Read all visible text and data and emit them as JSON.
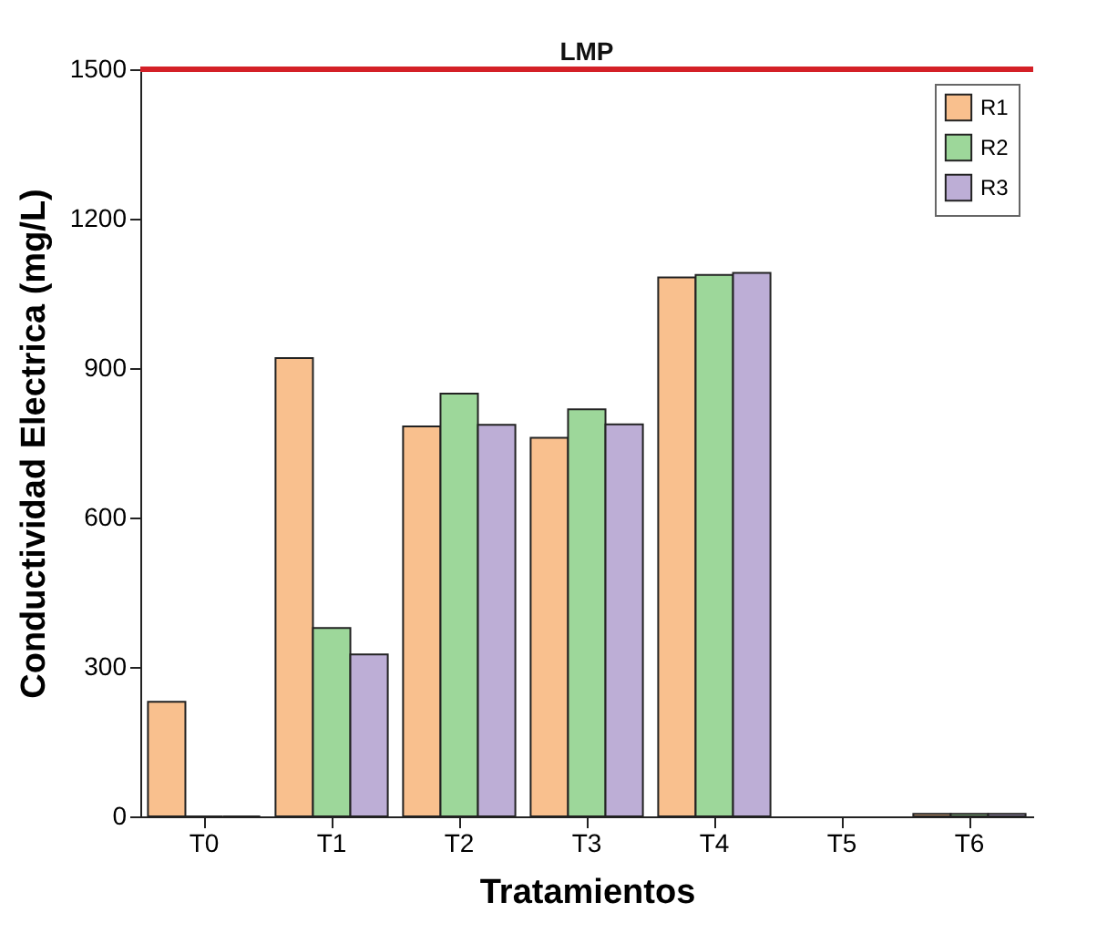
{
  "chart_data": {
    "type": "bar",
    "xlabel": "Tratamientos",
    "ylabel": "Conductividad Electrica (mg/L)",
    "categories": [
      "T0",
      "T1",
      "T2",
      "T3",
      "T4",
      "T5",
      "T6"
    ],
    "series": [
      {
        "name": "R1",
        "color": "#f9c08e",
        "values": [
          230,
          920,
          783,
          760,
          1082,
          null,
          5
        ]
      },
      {
        "name": "R2",
        "color": "#9dd79a",
        "values": [
          0,
          378,
          849,
          817,
          1087,
          null,
          5
        ]
      },
      {
        "name": "R3",
        "color": "#bdaed6",
        "values": [
          0,
          325,
          786,
          787,
          1091,
          null,
          5
        ]
      }
    ],
    "ylim": [
      0,
      1500
    ],
    "yticks": [
      0,
      300,
      600,
      900,
      1200,
      1500
    ],
    "ref_lines": [
      {
        "axis": "y",
        "value": 1500,
        "label": "LMP",
        "color": "#d42027"
      }
    ],
    "legend": "top right",
    "grid": false
  }
}
